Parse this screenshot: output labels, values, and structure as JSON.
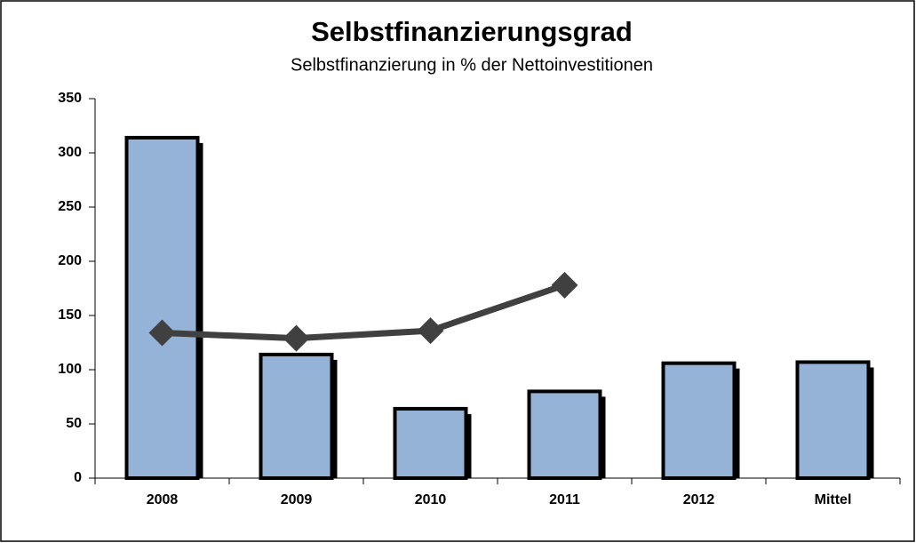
{
  "chart_data": {
    "type": "bar",
    "title": "Selbstfinanzierungsgrad",
    "subtitle": "Selbstfinanzierung in % der Nettoinvestitionen",
    "categories": [
      "2008",
      "2009",
      "2010",
      "2011",
      "2012",
      "Mittel"
    ],
    "series": [
      {
        "type": "bar",
        "color": "#95b3d7",
        "values": [
          314,
          114,
          64,
          80,
          106,
          107
        ]
      },
      {
        "type": "line",
        "color": "#404040",
        "values": [
          134,
          129,
          136,
          178,
          null,
          null
        ]
      }
    ],
    "ylim": [
      0,
      350
    ],
    "yticks": [
      0,
      50,
      100,
      150,
      200,
      250,
      300,
      350
    ]
  }
}
